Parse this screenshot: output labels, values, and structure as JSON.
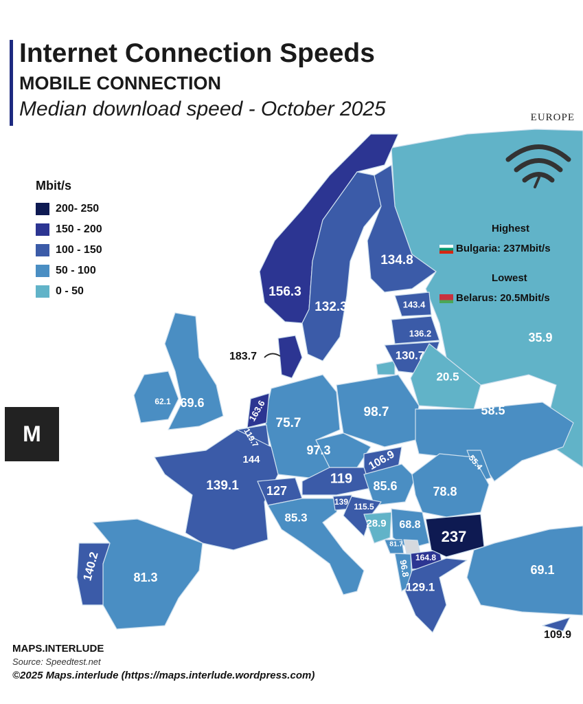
{
  "title": "Internet Connection Speeds",
  "subtitle": "MOBILE CONNECTION",
  "description": "Median download speed - October 2025",
  "region": "EUROPE",
  "legend": {
    "unit": "Mbit/s",
    "bins": [
      {
        "label": "200- 250",
        "color": "#0e1a52"
      },
      {
        "label": "150 - 200",
        "color": "#2c3592"
      },
      {
        "label": "100 - 150",
        "color": "#3b5ba8"
      },
      {
        "label": "50 - 100",
        "color": "#4a8ec3"
      },
      {
        "label": "0 - 50",
        "color": "#61b3c8"
      }
    ]
  },
  "highest": {
    "heading": "Highest",
    "text": "Bulgaria: 237Mbit/s"
  },
  "lowest": {
    "heading": "Lowest",
    "text": "Belarus: 20.5Mbit/s"
  },
  "icon": "wifi-icon",
  "logo_text": "M",
  "countries": [
    {
      "name": "Norway",
      "value": "156.3"
    },
    {
      "name": "Sweden",
      "value": "132.3"
    },
    {
      "name": "Finland",
      "value": "134.8"
    },
    {
      "name": "Russia",
      "value": "35.9"
    },
    {
      "name": "Estonia",
      "value": "143.4"
    },
    {
      "name": "Latvia",
      "value": "136.2"
    },
    {
      "name": "Lithuania",
      "value": "130.7"
    },
    {
      "name": "Belarus",
      "value": "20.5"
    },
    {
      "name": "Denmark",
      "value": "183.7"
    },
    {
      "name": "Ireland",
      "value": "62.1"
    },
    {
      "name": "United Kingdom",
      "value": "69.6"
    },
    {
      "name": "Netherlands",
      "value": "163.6"
    },
    {
      "name": "Belgium",
      "value": "119.7"
    },
    {
      "name": "Luxembourg",
      "value": "144"
    },
    {
      "name": "France",
      "value": "139.1"
    },
    {
      "name": "Germany",
      "value": "75.7"
    },
    {
      "name": "Poland",
      "value": "98.7"
    },
    {
      "name": "Czechia",
      "value": "97.3"
    },
    {
      "name": "Slovakia",
      "value": "106.9"
    },
    {
      "name": "Austria",
      "value": "119"
    },
    {
      "name": "Switzerland",
      "value": "127"
    },
    {
      "name": "Hungary",
      "value": "85.6"
    },
    {
      "name": "Ukraine",
      "value": "58.5"
    },
    {
      "name": "Moldova",
      "value": "55.4"
    },
    {
      "name": "Romania",
      "value": "78.8"
    },
    {
      "name": "Slovenia",
      "value": "139"
    },
    {
      "name": "Croatia",
      "value": "115.5"
    },
    {
      "name": "Italy",
      "value": "85.3"
    },
    {
      "name": "Bosnia and Herzegovina",
      "value": "28.9"
    },
    {
      "name": "Serbia",
      "value": "68.8"
    },
    {
      "name": "Montenegro",
      "value": "81.7"
    },
    {
      "name": "North Macedonia",
      "value": "164.8"
    },
    {
      "name": "Bulgaria",
      "value": "237"
    },
    {
      "name": "Albania",
      "value": "96.8"
    },
    {
      "name": "Greece",
      "value": "129.1"
    },
    {
      "name": "Turkey",
      "value": "69.1"
    },
    {
      "name": "Cyprus",
      "value": "109.9"
    },
    {
      "name": "Portugal",
      "value": "140.2"
    },
    {
      "name": "Spain",
      "value": "81.3"
    }
  ],
  "footer": {
    "brand": "MAPS.INTERLUDE",
    "source": "Source: Speedtest.net",
    "copyright": "©2025 Maps.interlude (https://maps.interlude.wordpress.com)"
  }
}
